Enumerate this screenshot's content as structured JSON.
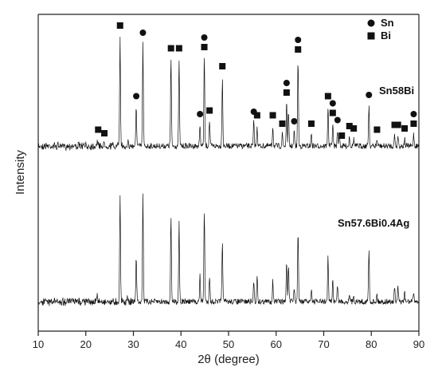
{
  "chart_data": {
    "type": "line",
    "xlabel": "2θ (degree)",
    "ylabel": "Intensity",
    "xlim": [
      10,
      90
    ],
    "xticks": [
      10,
      20,
      30,
      40,
      50,
      60,
      70,
      80,
      90
    ],
    "grid": false,
    "legend": {
      "placement": "top-right",
      "entries": [
        {
          "label": "Sn",
          "marker": "circle"
        },
        {
          "label": "Bi",
          "marker": "square"
        }
      ]
    },
    "series": [
      {
        "name": "Sn58Bi",
        "peaks": [
          [
            22.4,
            0.05
          ],
          [
            23.8,
            0.02
          ],
          [
            27.2,
            0.92
          ],
          [
            28.8,
            0.04
          ],
          [
            30.6,
            0.33
          ],
          [
            32.0,
            0.86
          ],
          [
            37.9,
            0.73
          ],
          [
            39.6,
            0.73
          ],
          [
            44.0,
            0.18
          ],
          [
            44.9,
            0.74
          ],
          [
            46.0,
            0.21
          ],
          [
            48.7,
            0.58
          ],
          [
            55.3,
            0.2
          ],
          [
            56.0,
            0.17
          ],
          [
            59.3,
            0.17
          ],
          [
            61.3,
            0.1
          ],
          [
            62.2,
            0.36
          ],
          [
            62.6,
            0.27
          ],
          [
            63.8,
            0.12
          ],
          [
            64.6,
            0.72
          ],
          [
            67.4,
            0.1
          ],
          [
            70.9,
            0.33
          ],
          [
            71.9,
            0.19
          ],
          [
            72.9,
            0.13
          ],
          [
            73.3,
            0.08
          ],
          [
            75.4,
            0.08
          ],
          [
            76.3,
            0.06
          ],
          [
            79.5,
            0.34
          ],
          [
            81.2,
            0.05
          ],
          [
            84.9,
            0.09
          ],
          [
            85.6,
            0.09
          ],
          [
            87.0,
            0.06
          ],
          [
            88.9,
            0.1
          ]
        ]
      },
      {
        "name": "Sn57.6Bi0.4Ag",
        "peaks": [
          [
            22.4,
            0.05
          ],
          [
            27.2,
            0.92
          ],
          [
            28.8,
            0.05
          ],
          [
            30.6,
            0.38
          ],
          [
            32.0,
            0.92
          ],
          [
            37.9,
            0.73
          ],
          [
            39.6,
            0.68
          ],
          [
            44.0,
            0.22
          ],
          [
            44.9,
            0.78
          ],
          [
            46.0,
            0.22
          ],
          [
            48.7,
            0.52
          ],
          [
            55.3,
            0.18
          ],
          [
            56.0,
            0.23
          ],
          [
            59.3,
            0.18
          ],
          [
            62.2,
            0.35
          ],
          [
            62.6,
            0.3
          ],
          [
            63.8,
            0.12
          ],
          [
            64.6,
            0.6
          ],
          [
            67.4,
            0.11
          ],
          [
            70.9,
            0.38
          ],
          [
            71.9,
            0.19
          ],
          [
            72.9,
            0.15
          ],
          [
            75.4,
            0.08
          ],
          [
            76.3,
            0.06
          ],
          [
            79.5,
            0.43
          ],
          [
            81.2,
            0.06
          ],
          [
            84.9,
            0.12
          ],
          [
            85.6,
            0.12
          ],
          [
            87.0,
            0.07
          ],
          [
            88.9,
            0.09
          ]
        ]
      }
    ],
    "phase_markers": {
      "circle": [
        30.6,
        32.0,
        44.0,
        44.9,
        55.3,
        62.2,
        63.8,
        64.6,
        71.9,
        72.9,
        79.5,
        88.9
      ],
      "square": [
        22.6,
        23.9,
        27.2,
        37.9,
        39.6,
        44.9,
        46.0,
        48.7,
        56.0,
        59.3,
        61.3,
        62.2,
        64.6,
        67.4,
        70.9,
        71.9,
        73.8,
        75.4,
        76.3,
        81.2,
        84.9,
        85.6,
        87.0,
        88.9
      ]
    }
  }
}
